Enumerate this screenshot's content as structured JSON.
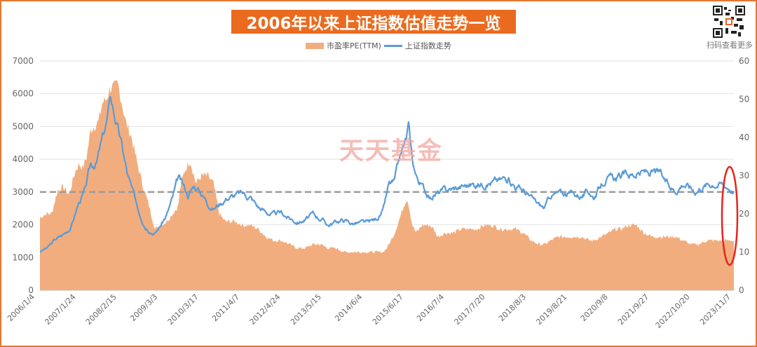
{
  "title": "2006年以来上证指数估值走势一览",
  "qr_caption": "扫码查看更多",
  "watermark": "天天基金",
  "chart_data": {
    "type": "area+line",
    "title": "2006年以来上证指数估值走势一览",
    "legend": [
      "市盈率PE(TTM)",
      "上证指数走势"
    ],
    "legend_position": "top-center",
    "grid": true,
    "y_left": {
      "min": 0,
      "max": 7000,
      "ticks": [
        0,
        1000,
        2000,
        3000,
        4000,
        5000,
        6000,
        7000
      ]
    },
    "y_right": {
      "min": 0,
      "max": 60,
      "ticks": [
        0,
        10,
        20,
        30,
        40,
        50,
        60
      ]
    },
    "x_start": 2006.0,
    "x_end": 2023.8,
    "x_tick_labels": [
      "2006/1/4",
      "2007/1/24",
      "2008/2/15",
      "2009/3/3",
      "2010/3/17",
      "2011/4/7",
      "2012/4/24",
      "2013/5/15",
      "2014/6/4",
      "2015/6/17",
      "2016/7/4",
      "2017/7/20",
      "2018/8/3",
      "2019/8/21",
      "2020/9/8",
      "2021/9/27",
      "2022/10/20",
      "2023/11/7"
    ],
    "reference_line": {
      "value": 3000,
      "axis": "left",
      "style": "dashed"
    },
    "pe_series": {
      "name": "市盈率PE(TTM)",
      "color": "#f2ad7e",
      "t": [
        2006.0,
        2006.15,
        2006.3,
        2006.45,
        2006.6,
        2006.75,
        2006.9,
        2007.0,
        2007.1,
        2007.2,
        2007.3,
        2007.4,
        2007.5,
        2007.6,
        2007.7,
        2007.8,
        2007.9,
        2008.0,
        2008.1,
        2008.2,
        2008.35,
        2008.5,
        2008.65,
        2008.8,
        2008.95,
        2009.1,
        2009.25,
        2009.4,
        2009.55,
        2009.6,
        2009.7,
        2009.85,
        2010.0,
        2010.15,
        2010.3,
        2010.45,
        2010.6,
        2010.75,
        2010.9,
        2011.0,
        2011.2,
        2011.4,
        2011.6,
        2011.8,
        2012.0,
        2012.2,
        2012.4,
        2012.6,
        2012.8,
        2013.0,
        2013.2,
        2013.4,
        2013.6,
        2013.8,
        2014.0,
        2014.2,
        2014.4,
        2014.6,
        2014.8,
        2014.9,
        2015.0,
        2015.1,
        2015.2,
        2015.3,
        2015.4,
        2015.45,
        2015.55,
        2015.65,
        2015.8,
        2016.0,
        2016.1,
        2016.2,
        2016.4,
        2016.6,
        2016.8,
        2017.0,
        2017.2,
        2017.4,
        2017.6,
        2017.8,
        2018.0,
        2018.2,
        2018.4,
        2018.6,
        2018.8,
        2018.95,
        2019.1,
        2019.3,
        2019.5,
        2019.7,
        2019.9,
        2020.1,
        2020.2,
        2020.4,
        2020.6,
        2020.75,
        2020.9,
        2021.1,
        2021.3,
        2021.5,
        2021.7,
        2021.9,
        2022.1,
        2022.3,
        2022.5,
        2022.7,
        2022.9,
        2023.1,
        2023.3,
        2023.5,
        2023.7,
        2023.8
      ],
      "values": [
        19,
        20,
        20,
        26,
        27,
        25,
        31,
        33,
        32,
        35,
        42,
        43,
        44,
        49,
        50,
        53,
        53,
        54,
        49,
        44,
        40,
        33,
        27,
        22,
        16,
        17,
        18,
        20,
        22,
        27,
        31,
        34,
        28,
        30,
        30,
        28,
        20,
        18,
        18,
        18,
        17,
        17,
        16,
        14,
        13,
        13,
        12,
        11,
        11,
        12,
        12,
        11,
        11,
        10,
        10,
        10,
        10,
        10,
        10,
        11,
        13,
        15,
        18,
        21,
        24,
        23,
        17,
        15,
        17,
        17,
        16,
        14,
        15,
        15,
        16,
        16,
        16,
        17,
        17,
        16,
        16,
        16,
        15,
        13,
        12,
        12,
        13,
        14,
        14,
        14,
        14,
        13,
        13,
        14,
        15,
        16,
        16,
        17,
        17,
        15,
        14,
        14,
        14,
        14,
        13,
        12,
        12,
        13,
        13,
        13,
        13,
        13
      ]
    },
    "index_series": {
      "name": "上证指数走势",
      "color": "#5b9bd5",
      "t": [
        2006.0,
        2006.2,
        2006.4,
        2006.6,
        2006.8,
        2007.0,
        2007.15,
        2007.3,
        2007.45,
        2007.6,
        2007.75,
        2007.8,
        2007.95,
        2008.1,
        2008.25,
        2008.4,
        2008.55,
        2008.7,
        2008.85,
        2008.95,
        2009.1,
        2009.25,
        2009.4,
        2009.55,
        2009.65,
        2009.8,
        2009.95,
        2010.1,
        2010.3,
        2010.45,
        2010.6,
        2010.8,
        2011.0,
        2011.2,
        2011.4,
        2011.6,
        2011.8,
        2012.0,
        2012.2,
        2012.4,
        2012.6,
        2012.8,
        2013.0,
        2013.2,
        2013.4,
        2013.6,
        2013.8,
        2014.0,
        2014.2,
        2014.4,
        2014.6,
        2014.8,
        2014.95,
        2015.1,
        2015.25,
        2015.4,
        2015.45,
        2015.55,
        2015.65,
        2015.8,
        2016.0,
        2016.1,
        2016.3,
        2016.6,
        2016.9,
        2017.2,
        2017.5,
        2017.8,
        2018.0,
        2018.2,
        2018.4,
        2018.6,
        2018.8,
        2018.95,
        2019.1,
        2019.3,
        2019.6,
        2019.9,
        2020.1,
        2020.2,
        2020.5,
        2020.8,
        2021.0,
        2021.3,
        2021.6,
        2021.9,
        2022.1,
        2022.3,
        2022.5,
        2022.8,
        2023.0,
        2023.3,
        2023.5,
        2023.7,
        2023.8
      ],
      "values": [
        1180,
        1300,
        1550,
        1700,
        1950,
        2700,
        3000,
        3800,
        3900,
        4600,
        5300,
        5950,
        5200,
        4400,
        3500,
        2900,
        2400,
        2000,
        1850,
        1750,
        2000,
        2300,
        2800,
        3400,
        3200,
        2900,
        3200,
        3050,
        2700,
        2500,
        2650,
        2850,
        2900,
        2950,
        2850,
        2550,
        2400,
        2300,
        2350,
        2200,
        2100,
        2150,
        2300,
        2200,
        2000,
        2100,
        2150,
        2050,
        2050,
        2050,
        2150,
        2400,
        3200,
        3300,
        4100,
        4600,
        5000,
        4000,
        3500,
        3200,
        2800,
        2900,
        3000,
        3100,
        3200,
        3250,
        3300,
        3350,
        3450,
        3200,
        3050,
        2800,
        2600,
        2500,
        2900,
        2950,
        2950,
        2900,
        3000,
        2850,
        3400,
        3400,
        3500,
        3550,
        3600,
        3550,
        3200,
        3050,
        3300,
        3050,
        3200,
        3300,
        3250,
        3150,
        3050
      ]
    }
  }
}
